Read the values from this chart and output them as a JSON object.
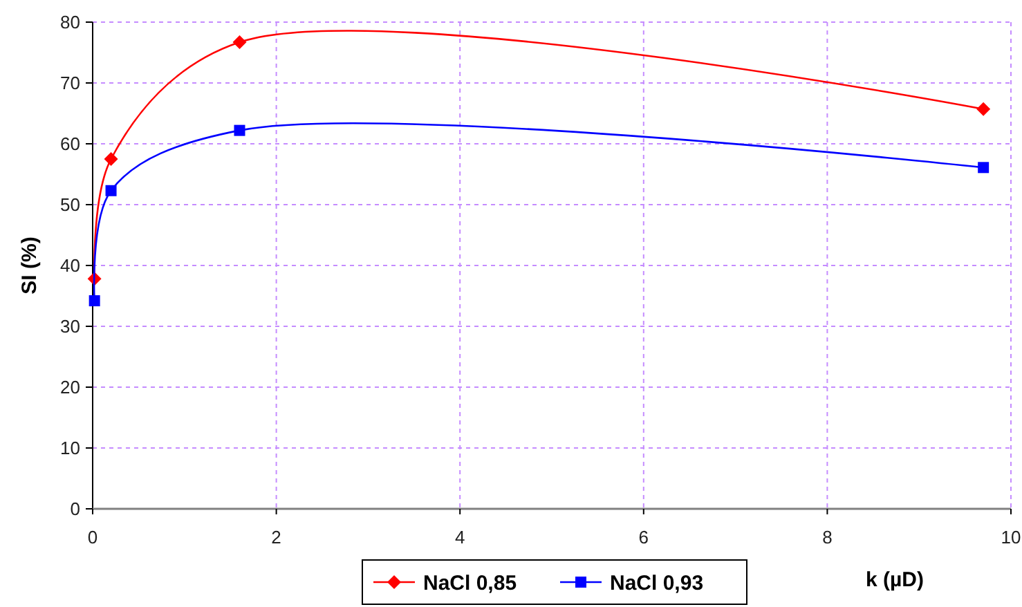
{
  "chart_data": {
    "type": "line",
    "xlabel": "k (µD)",
    "ylabel": "SI (%)",
    "xlim": [
      0,
      10
    ],
    "xticks": [
      0,
      2,
      4,
      6,
      8,
      10
    ],
    "ylim": [
      0,
      80
    ],
    "yticks": [
      0,
      10,
      20,
      30,
      40,
      50,
      60,
      70,
      80
    ],
    "grid": true,
    "legend": "bottom",
    "series": [
      {
        "name": "NaCl 0,85",
        "color": "#ff0000",
        "marker": "diamond",
        "x": [
          0.02,
          0.2,
          1.6,
          9.7
        ],
        "values": [
          37.8,
          57.5,
          76.7,
          65.7
        ]
      },
      {
        "name": "NaCl 0,93",
        "color": "#0000ff",
        "marker": "square",
        "x": [
          0.02,
          0.2,
          1.6,
          9.7
        ],
        "values": [
          34.2,
          52.3,
          62.2,
          56.1
        ]
      }
    ]
  }
}
